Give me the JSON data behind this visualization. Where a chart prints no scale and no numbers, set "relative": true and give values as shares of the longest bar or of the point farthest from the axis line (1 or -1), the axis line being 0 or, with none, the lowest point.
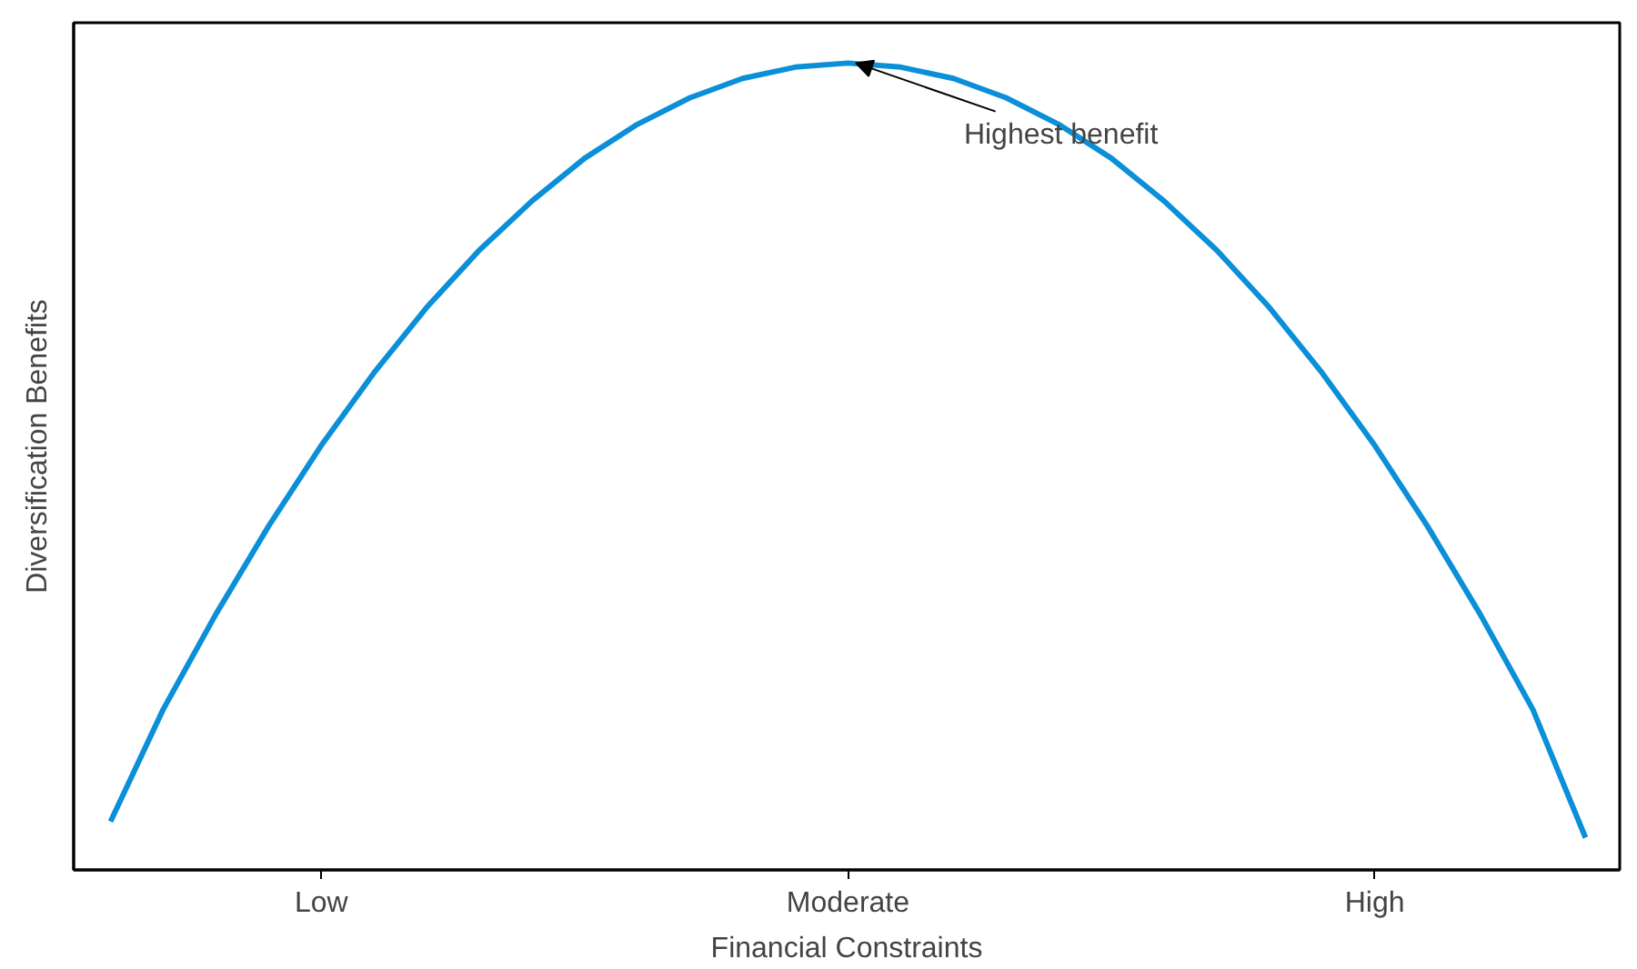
{
  "chart_data": {
    "type": "line",
    "relative": true,
    "xlabel": "Financial Constraints",
    "ylabel": "Diversification Benefits",
    "categories": [
      null,
      null,
      null,
      null,
      "Low",
      null,
      null,
      null,
      null,
      null,
      null,
      null,
      null,
      null,
      "Moderate",
      null,
      null,
      null,
      null,
      null,
      null,
      null,
      null,
      null,
      "High",
      null,
      null,
      null,
      null
    ],
    "tick_labels": "x",
    "grid": false,
    "marker": "none",
    "line_style": "solid",
    "series": [
      {
        "color": "#0a8fd8",
        "values": [
          0.06,
          0.199,
          0.317,
          0.426,
          0.526,
          0.616,
          0.697,
          0.768,
          0.829,
          0.882,
          0.924,
          0.957,
          0.981,
          0.995,
          1.0,
          0.995,
          0.981,
          0.957,
          0.924,
          0.882,
          0.829,
          0.768,
          0.697,
          0.616,
          0.526,
          0.426,
          0.317,
          0.199,
          0.04
        ]
      }
    ],
    "annotations": [
      {
        "text": "Highest benefit",
        "x": "Moderate",
        "y": 1.0
      }
    ]
  }
}
